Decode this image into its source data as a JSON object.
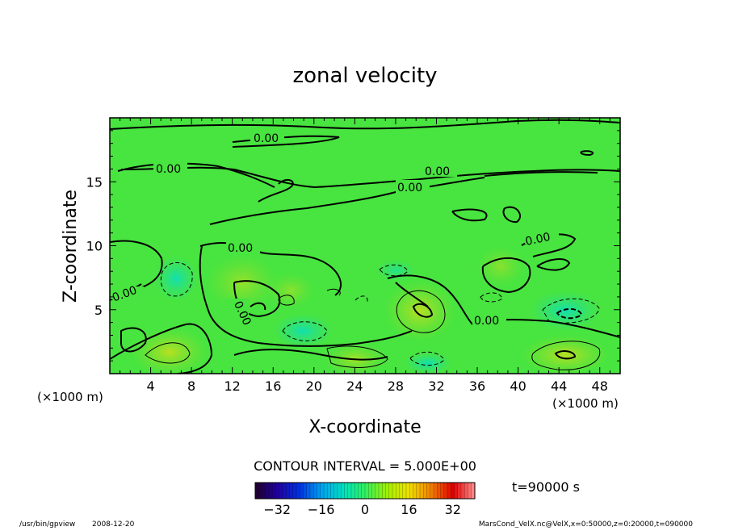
{
  "chart_data": {
    "type": "contour",
    "title": "zonal velocity",
    "xlabel": "X-coordinate",
    "ylabel": "Z-coordinate",
    "x_unit_left": "(×1000 m)",
    "x_unit_right": "(×1000 m)",
    "xlim": [
      0,
      50
    ],
    "ylim": [
      0,
      20
    ],
    "xticks": [
      4,
      8,
      12,
      16,
      20,
      24,
      28,
      32,
      36,
      40,
      44,
      48
    ],
    "yticks": [
      5,
      10,
      15
    ],
    "contour_interval_text": "CONTOUR INTERVAL = 5.000E+00",
    "contour_labels": [
      "0.00",
      "0.00",
      "0.00",
      "0.00",
      "0.00",
      "0.00",
      "0.00",
      "0.00",
      "0.00"
    ],
    "time_text": "t=90000 s",
    "colorbar": {
      "min": -40,
      "max": 40,
      "ticks": [
        -32,
        -16,
        0,
        16,
        32
      ],
      "colors": [
        "#200028",
        "#2000a0",
        "#0030e0",
        "#00a0f0",
        "#00e0c0",
        "#30f060",
        "#a0f000",
        "#f0e000",
        "#f08000",
        "#e00000",
        "#ff9090"
      ]
    },
    "field_colors": {
      "background": "#40e040",
      "positive_patch": "#a0e030",
      "negative_patch": "#20e0a0",
      "strong_positive": "#c0e020"
    },
    "features": [
      {
        "kind": "positive_max",
        "x": 30.5,
        "z": 5.2
      },
      {
        "kind": "positive_max",
        "x": 44.5,
        "z": 1.5
      },
      {
        "kind": "negative_min",
        "x": 44.5,
        "z": 4.6
      },
      {
        "kind": "negative_min",
        "x": 6.5,
        "z": 7.6
      },
      {
        "kind": "negative_min",
        "x": 19.5,
        "z": 3.5
      }
    ]
  },
  "footer": {
    "program": "/usr/bin/gpview",
    "date": "2008-12-20",
    "source": "MarsCond_VelX.nc@VelX,x=0:50000,z=0:20000,t=090000"
  }
}
